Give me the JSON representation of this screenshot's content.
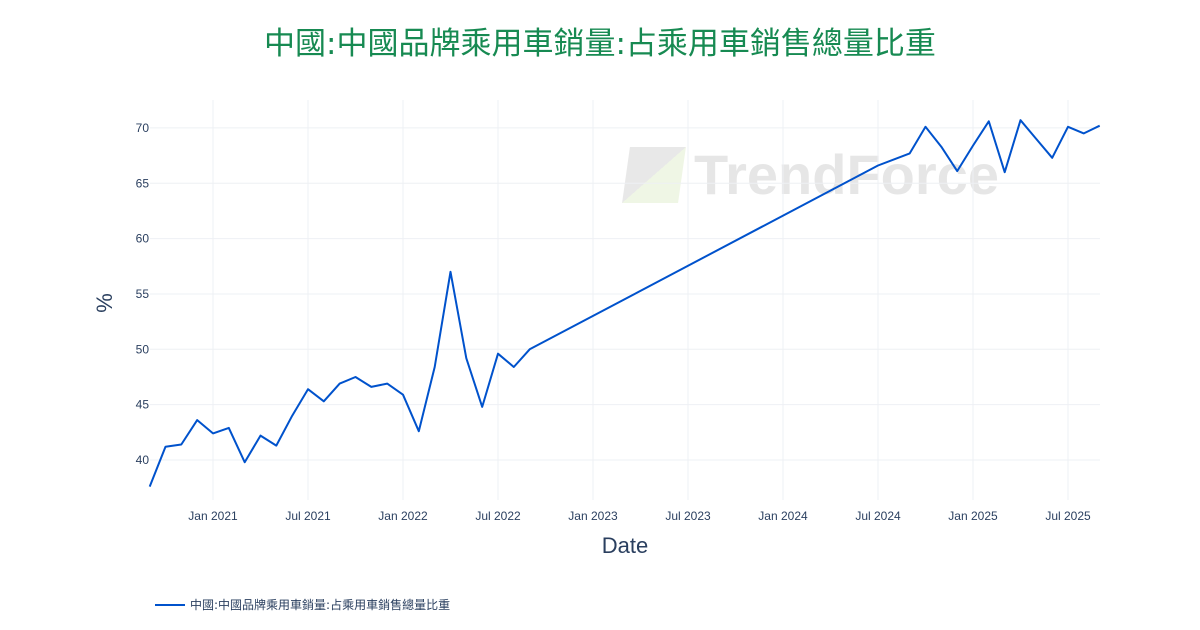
{
  "chart_data": {
    "type": "line",
    "title": "中國:中國品牌乘用車銷量:占乘用車銷售總量比重",
    "xlabel": "Date",
    "ylabel": "%",
    "ylim": [
      36.4,
      72.5
    ],
    "xlim": [
      "2020-09",
      "2025-09"
    ],
    "grid": true,
    "legend_position": "bottom-left",
    "x_ticks": [
      "Jan 2021",
      "Jul 2021",
      "Jan 2022",
      "Jul 2022",
      "Jan 2023",
      "Jul 2023",
      "Jan 2024",
      "Jul 2024",
      "Jan 2025",
      "Jul 2025"
    ],
    "y_ticks": [
      40,
      45,
      50,
      55,
      60,
      65,
      70
    ],
    "series": [
      {
        "name": "中國:中國品牌乘用車銷量:占乘用車銷售總量比重",
        "color": "#0052cc",
        "x": [
          "2020-09",
          "2020-10",
          "2020-11",
          "2020-12",
          "2021-01",
          "2021-02",
          "2021-03",
          "2021-04",
          "2021-05",
          "2021-06",
          "2021-07",
          "2021-08",
          "2021-09",
          "2021-10",
          "2021-11",
          "2021-12",
          "2022-01",
          "2022-02",
          "2022-03",
          "2022-04",
          "2022-05",
          "2022-06",
          "2022-07",
          "2022-08",
          "2022-09",
          "2024-07",
          "2024-09",
          "2024-10",
          "2024-11",
          "2024-12",
          "2025-01",
          "2025-02",
          "2025-03",
          "2025-04",
          "2025-05",
          "2025-06",
          "2025-07",
          "2025-08",
          "2025-09"
        ],
        "y": [
          37.6,
          41.2,
          41.4,
          43.6,
          42.4,
          42.9,
          39.8,
          42.2,
          41.3,
          44.0,
          46.4,
          45.3,
          46.9,
          47.5,
          46.6,
          46.9,
          45.9,
          42.6,
          48.4,
          57.0,
          49.2,
          44.8,
          49.6,
          48.4,
          50.0,
          66.6,
          67.7,
          70.1,
          68.3,
          66.1,
          68.4,
          70.6,
          66.0,
          70.7,
          69.0,
          67.3,
          70.1,
          69.5,
          70.2
        ]
      }
    ]
  },
  "watermark": "TrendForce"
}
